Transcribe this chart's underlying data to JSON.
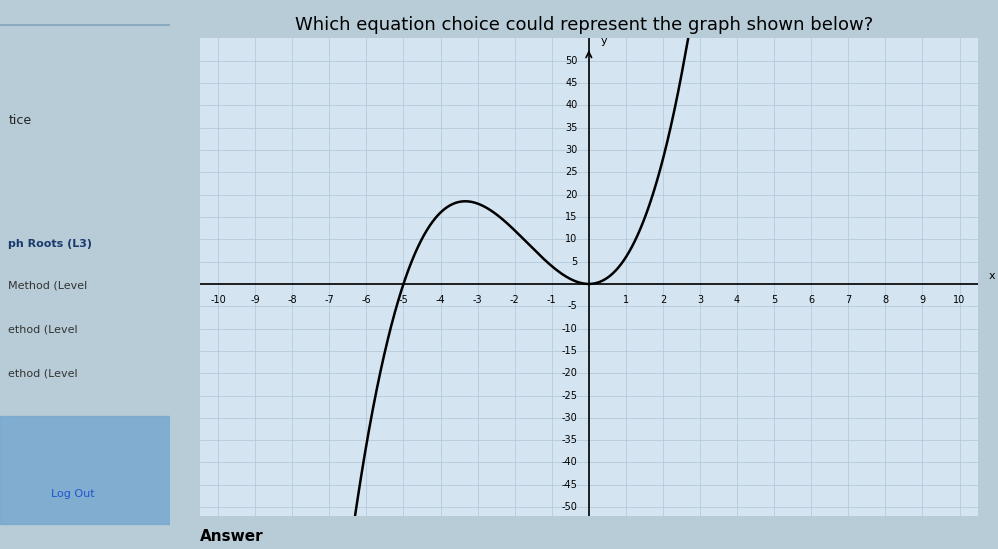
{
  "title": "Which equation choice could represent the graph shown below?",
  "title_fontsize": 13,
  "xlim": [
    -10.5,
    10.5
  ],
  "ylim": [
    -52,
    55
  ],
  "xticks": [
    -10,
    -9,
    -8,
    -7,
    -6,
    -5,
    -4,
    -3,
    -2,
    -1,
    1,
    2,
    3,
    4,
    5,
    6,
    7,
    8,
    9,
    10
  ],
  "yticks": [
    -50,
    -45,
    -40,
    -35,
    -30,
    -25,
    -20,
    -15,
    -10,
    -5,
    5,
    10,
    15,
    20,
    25,
    30,
    35,
    40,
    45,
    50
  ],
  "xlabel": "x",
  "ylabel": "y",
  "curve_color": "#000000",
  "curve_linewidth": 1.8,
  "grid_color": "#aec6d8",
  "grid_linewidth": 0.5,
  "bg_color": "#b8ccd8",
  "plot_bg_color": "#d4e4f0",
  "sidebar_bg": "#b8ccd8",
  "answer_label": "Answer",
  "equation": "x^2*(x+5)"
}
